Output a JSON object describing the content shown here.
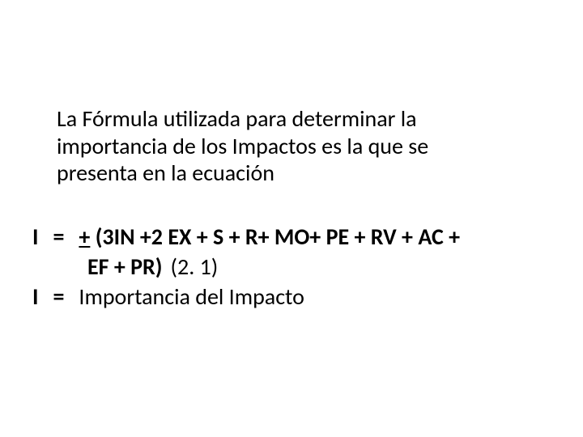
{
  "text_color": "#000000",
  "background_color": "#ffffff",
  "font_family": "Calibri, Arial, sans-serif",
  "intro_fontsize": 28,
  "formula_fontsize": 28,
  "intro": "La Fórmula utilizada para determinar la importancia de los Impactos es la que se presenta en la ecuación",
  "formula": {
    "lhs": "I",
    "eq": "=",
    "plus_minus": "+",
    "expr_line1": " (3IN +2 EX + S + R+ MO+ PE + RV + AC +",
    "expr_line2": "EF + PR)",
    "ref": "(2. 1)"
  },
  "definition": {
    "lhs": "I",
    "eq": "=",
    "text": "Importancia del Impacto"
  }
}
